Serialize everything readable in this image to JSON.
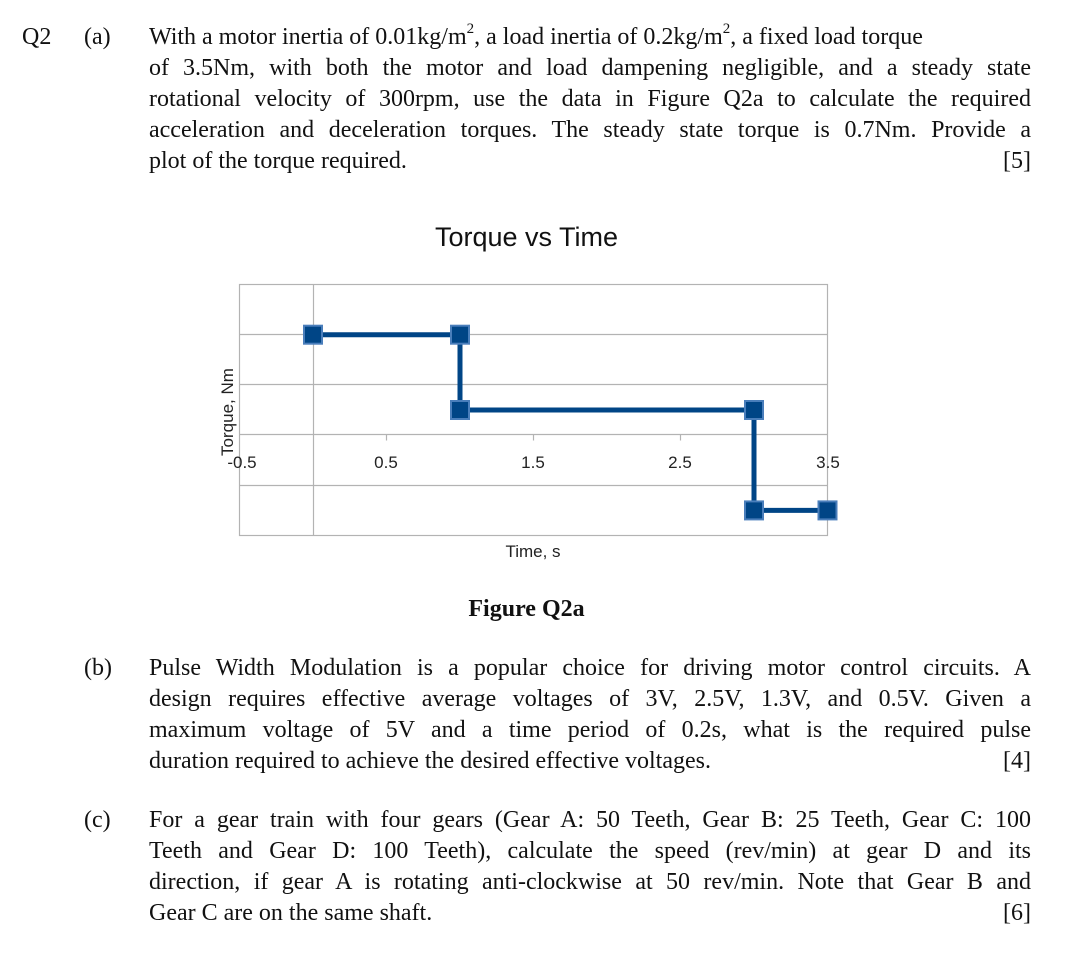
{
  "question": {
    "number": "Q2",
    "parts": [
      {
        "label": "(a)",
        "lines": [
          "With a motor inertia of 0.01kg/m², a load inertia of 0.2kg/m², a fixed load torque",
          "of 3.5Nm, with both the motor and load dampening negligible, and a steady state",
          "rotational velocity of 300rpm, use the data in Figure Q2a to calculate the required",
          "acceleration and deceleration torques. The steady state torque is 0.7Nm. Provide a",
          "plot of the torque required."
        ],
        "segments": {
          "l1a": "With a motor inertia of 0.01kg/m",
          "l1b": ", a load inertia of 0.2kg/m",
          "l1c": ", a fixed load torque",
          "sup": "2"
        },
        "marks": "[5]"
      },
      {
        "label": "(b)",
        "lines": [
          "Pulse Width Modulation is a popular choice for driving motor control circuits. A",
          "design requires effective average voltages of 3V, 2.5V, 1.3V, and 0.5V. Given a",
          "maximum voltage of 5V and a time period of 0.2s, what is the required pulse",
          "duration required to achieve the desired effective voltages."
        ],
        "marks": "[4]"
      },
      {
        "label": "(c)",
        "lines": [
          "For a gear train with four gears (Gear A: 50 Teeth, Gear B: 25 Teeth, Gear C: 100",
          "Teeth and Gear D: 100 Teeth), calculate the speed (rev/min) at gear D and its",
          "direction, if gear A is rotating anti-clockwise at 50 rev/min. Note that Gear B and",
          "Gear C are on the same shaft."
        ],
        "marks": "[6]"
      }
    ]
  },
  "figure": {
    "caption": "Figure Q2a"
  },
  "chart_data": {
    "type": "line",
    "title": "Torque vs Time",
    "xlabel": "Time, s",
    "ylabel": "Torque, Nm",
    "x_tick_labels": [
      "-0.5",
      "0.5",
      "1.5",
      "2.5",
      "3.5"
    ],
    "xlim": [
      -0.5,
      3.5
    ],
    "ylim": [
      -2,
      3
    ],
    "y_tick_labels_visible": false,
    "grid": true,
    "legend": "none",
    "series": [
      {
        "name": "Torque",
        "color": "#004586",
        "marker": "square",
        "marker_edge_color": "#4a7ebb",
        "x": [
          0,
          1.0,
          1.0,
          3.0,
          3.0,
          3.5
        ],
        "y": [
          2,
          2,
          0.5,
          0.5,
          -1.5,
          -1.5
        ]
      }
    ]
  },
  "colors": {
    "text": "#111111",
    "grid": "#b3b3b3",
    "series": "#004586",
    "marker_edge": "#4a7ebb",
    "tick_label": "#222222"
  }
}
